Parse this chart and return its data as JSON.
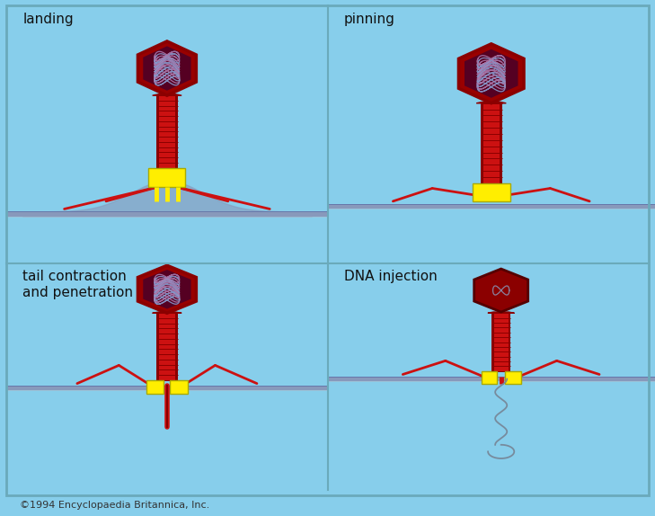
{
  "bg_color": "#87CEEB",
  "label_font_size": 11,
  "copyright_text": "©1994 Encyclopaedia Britannica, Inc.",
  "labels": [
    "landing",
    "pinning",
    "tail contraction\nand penetration",
    "DNA injection"
  ],
  "phage_red": "#CC1111",
  "phage_dark_red": "#8B0000",
  "phage_inner_red": "#990000",
  "phage_yellow": "#FFEE00",
  "dna_blue": "#6688BB",
  "dna_purple": "#9966AA",
  "surface_color": "#8899BB",
  "surface_shadow": "#6677AA",
  "grid_line_color": "#6AAABB"
}
